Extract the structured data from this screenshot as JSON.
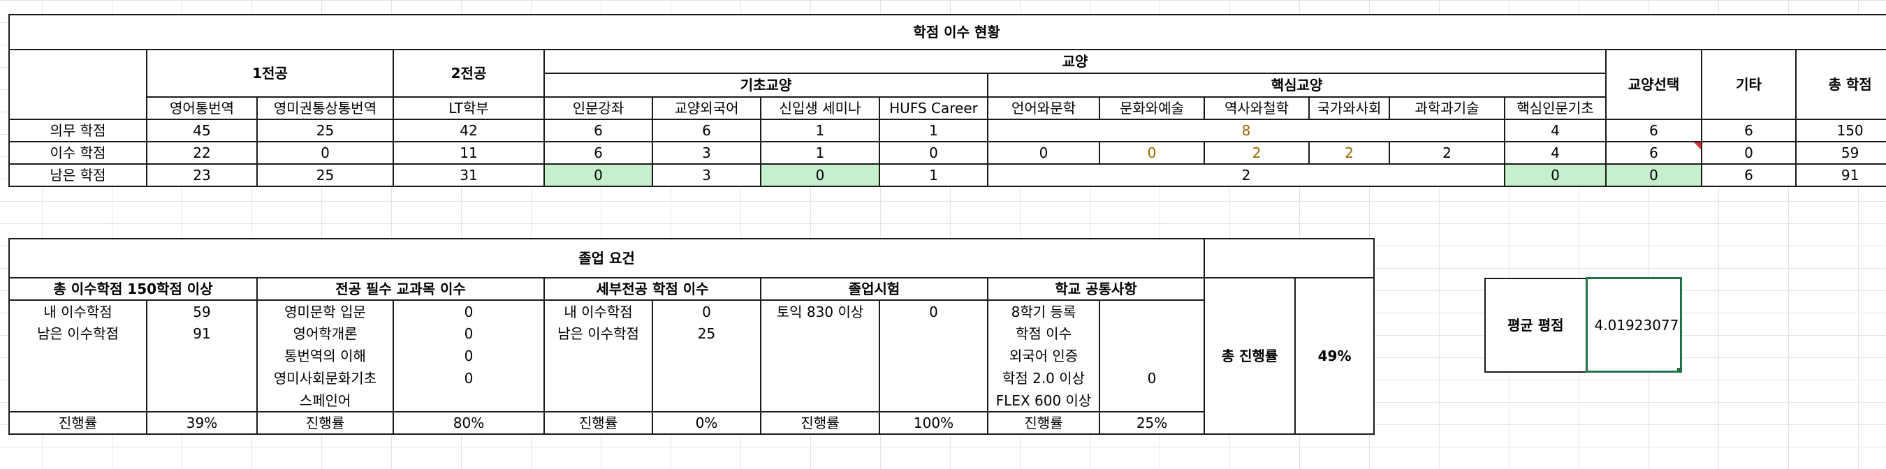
{
  "credit_status": {
    "title": "학점 이수 현황",
    "groups": {
      "major1": "1전공",
      "major2": "2전공",
      "liberal": "교양",
      "basic_liberal": "기초교양",
      "core_liberal": "핵심교양",
      "liberal_elective": "교양선택",
      "etc": "기타",
      "total": "총 학점"
    },
    "columns": [
      "영어통번역",
      "영미권통상통번역",
      "LT학부",
      "인문강좌",
      "교양외국어",
      "신입생 세미나",
      "HUFS Career",
      "언어와문학",
      "문화와예술",
      "역사와철학",
      "국가와사회",
      "과학과기술",
      "핵심인문기초"
    ],
    "rows": [
      {
        "label": "의무 학점",
        "major1a": "45",
        "major1b": "25",
        "major2": "42",
        "b1": "6",
        "b2": "6",
        "b3": "1",
        "b4": "1",
        "core_merged": "8",
        "c6": "4",
        "elective": "6",
        "etc": "6",
        "total": "150"
      },
      {
        "label": "이수 학점",
        "major1a": "22",
        "major1b": "0",
        "major2": "11",
        "b1": "6",
        "b2": "3",
        "b3": "1",
        "b4": "0",
        "c1": "0",
        "c2": "0",
        "c3": "2",
        "c4": "2",
        "c5": "2",
        "c6": "4",
        "elective": "6",
        "etc": "0",
        "total": "59"
      },
      {
        "label": "남은 학점",
        "major1a": "23",
        "major1b": "25",
        "major2": "31",
        "b1": "0",
        "b2": "3",
        "b3": "0",
        "b4": "1",
        "core_merged": "2",
        "c6": "0",
        "elective": "0",
        "etc": "6",
        "total": "91"
      }
    ]
  },
  "graduation": {
    "title": "졸업 요건",
    "sections": {
      "total_credits": "총 이수학점 150학점 이상",
      "major_required": "전공 필수 교과목 이수",
      "sub_major": "세부전공 학점 이수",
      "grad_exam": "졸업시험",
      "school_common": "학교 공통사항",
      "total_progress": "총 진행률",
      "total_progress_value": "49%"
    },
    "total_credits": [
      {
        "label": "내 이수학점",
        "value": "59"
      },
      {
        "label": "남은 이수학점",
        "value": "91"
      }
    ],
    "major_required": [
      {
        "label": "영미문학 입문",
        "value": "0"
      },
      {
        "label": "영어학개론",
        "value": "0"
      },
      {
        "label": "통번역의 이해",
        "value": "0"
      },
      {
        "label": "영미사회문화기초",
        "value": "0"
      },
      {
        "label": "스페인어",
        "value": ""
      }
    ],
    "sub_major": [
      {
        "label": "내 이수학점",
        "value": "0"
      },
      {
        "label": "남은 이수학점",
        "value": "25"
      }
    ],
    "grad_exam": [
      {
        "label": "토익 830 이상",
        "value": "0"
      }
    ],
    "school_common": [
      {
        "label": "8학기 등록",
        "value": ""
      },
      {
        "label": "학점 이수",
        "value": ""
      },
      {
        "label": "외국어 인증",
        "value": ""
      },
      {
        "label": "학점 2.0 이상",
        "value": "0"
      },
      {
        "label": "FLEX 600 이상",
        "value": ""
      }
    ],
    "progress": {
      "label": "진행률",
      "total_credits": "39%",
      "major_required": "80%",
      "sub_major": "0%",
      "grad_exam": "100%",
      "school_common": "25%"
    }
  },
  "gpa": {
    "label": "평균 평점",
    "value": "4.01923077"
  },
  "colors": {
    "green_fill": "#c6efce",
    "selection": "#217346",
    "comment_marker": "#dd3333"
  }
}
